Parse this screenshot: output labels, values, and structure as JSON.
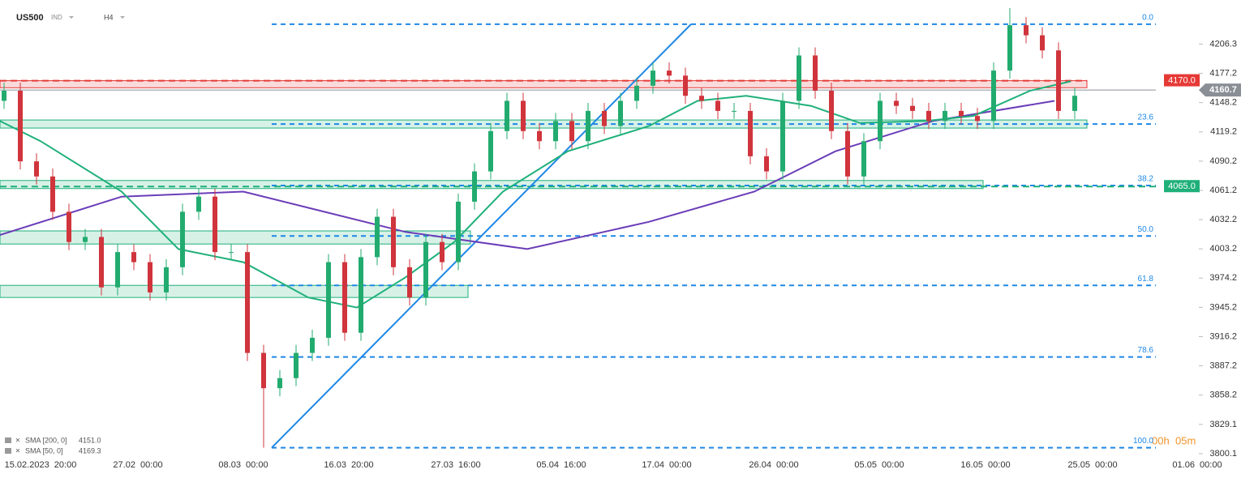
{
  "header": {
    "symbol": "US500",
    "market": "IND",
    "interval": "H4",
    "countdown_hours": "00h",
    "countdown_minutes": "05m"
  },
  "chart_data": {
    "type": "candlestick",
    "x": [
      0,
      1,
      2,
      3,
      4,
      5,
      6,
      7,
      8,
      9,
      10,
      11,
      12,
      13,
      14,
      15,
      16,
      17,
      18,
      19,
      20,
      21,
      22,
      23,
      24,
      25,
      26,
      27,
      28,
      29,
      30,
      31,
      32,
      33,
      34,
      35,
      36,
      37,
      38,
      39,
      40,
      41,
      42,
      43,
      44,
      45,
      46,
      47,
      48,
      49,
      50,
      51,
      52,
      53,
      54,
      55,
      56,
      57,
      58,
      59,
      60,
      61,
      62,
      63,
      64,
      65,
      66
    ],
    "open": [
      4150,
      4160,
      4090,
      4075,
      4040,
      4010,
      4015,
      3965,
      4000,
      3990,
      3960,
      3985,
      4040,
      4055,
      4000,
      4000,
      3900,
      3865,
      3875,
      3900,
      3915,
      3990,
      3920,
      3995,
      4035,
      3985,
      3955,
      4010,
      3990,
      4050,
      4080,
      4120,
      4150,
      4120,
      4110,
      4130,
      4110,
      4140,
      4125,
      4150,
      4165,
      4180,
      4175,
      4155,
      4150,
      4140,
      4140,
      4095,
      4080,
      4150,
      4195,
      4160,
      4120,
      4075,
      4110,
      4150,
      4145,
      4140,
      4130,
      4140,
      4135,
      4130,
      4180,
      4225,
      4215,
      4200,
      4140
    ],
    "high": [
      4168,
      4168,
      4098,
      4083,
      4048,
      4023,
      4023,
      4008,
      4008,
      3998,
      3993,
      4048,
      4063,
      4063,
      4008,
      4008,
      3908,
      3883,
      3908,
      3923,
      3998,
      3998,
      4003,
      4043,
      4043,
      3993,
      4018,
      4018,
      4058,
      4088,
      4128,
      4158,
      4158,
      4128,
      4138,
      4138,
      4148,
      4148,
      4158,
      4173,
      4188,
      4188,
      4183,
      4163,
      4158,
      4148,
      4148,
      4103,
      4158,
      4203,
      4203,
      4168,
      4128,
      4118,
      4158,
      4158,
      4153,
      4148,
      4148,
      4148,
      4143,
      4188,
      4242,
      4233,
      4223,
      4208,
      4163
    ],
    "low": [
      4142,
      4082,
      4067,
      4032,
      4002,
      4002,
      3957,
      3957,
      3982,
      3952,
      3952,
      3977,
      4032,
      3992,
      3992,
      3892,
      3806,
      3857,
      3867,
      3892,
      3907,
      3912,
      3912,
      3987,
      3977,
      3947,
      3947,
      3982,
      3982,
      4042,
      4072,
      4112,
      4112,
      4102,
      4102,
      4102,
      4102,
      4117,
      4117,
      4142,
      4157,
      4167,
      4147,
      4142,
      4132,
      4132,
      4087,
      4072,
      4072,
      4142,
      4152,
      4112,
      4067,
      4067,
      4102,
      4137,
      4132,
      4122,
      4122,
      4127,
      4122,
      4122,
      4172,
      4207,
      4192,
      4132,
      4132
    ],
    "close": [
      4160,
      4090,
      4075,
      4040,
      4010,
      4015,
      3965,
      4000,
      3990,
      3960,
      3985,
      4040,
      4055,
      4000,
      4000,
      3900,
      3865,
      3875,
      3900,
      3915,
      3990,
      3920,
      3995,
      4035,
      3985,
      3955,
      4010,
      3990,
      4050,
      4080,
      4120,
      4150,
      4120,
      4110,
      4130,
      4110,
      4140,
      4125,
      4150,
      4165,
      4180,
      4175,
      4155,
      4150,
      4140,
      4140,
      4095,
      4080,
      4150,
      4195,
      4160,
      4120,
      4075,
      4110,
      4150,
      4145,
      4140,
      4130,
      4140,
      4135,
      4130,
      4180,
      4225,
      4215,
      4200,
      4140,
      4155
    ],
    "up_color": "#22ab6f",
    "down_color": "#d0343c",
    "indicators": [
      {
        "name": "SMA [200, 0]",
        "value_label": "4151.0",
        "color": "#6a3db8",
        "x": [
          -0.25,
          7.25,
          14.75,
          24.75,
          32.25,
          39.75,
          46.25,
          51.25,
          57.25,
          64.75
        ],
        "values": [
          4017,
          4055,
          4060,
          4020,
          4003,
          4030,
          4060,
          4100,
          4130,
          4150
        ]
      },
      {
        "name": "SMA [50, 0]",
        "value_label": "4169.3",
        "color": "#1fb07a",
        "x": [
          -0.25,
          2.25,
          7.25,
          10.75,
          14.75,
          18.75,
          21.75,
          24.75,
          27.75,
          30.75,
          34.75,
          39.75,
          42.75,
          45.75,
          49.75,
          52.75,
          56.75,
          59.75,
          63.25,
          65.75
        ],
        "values": [
          4130,
          4110,
          4060,
          4003,
          3990,
          3955,
          3945,
          3975,
          4010,
          4060,
          4100,
          4125,
          4150,
          4155,
          4145,
          4128,
          4130,
          4135,
          4160,
          4169.3
        ]
      }
    ],
    "zones": [
      {
        "x": [
          -0.25,
          66.75
        ],
        "y": [
          4163,
          4170
        ],
        "color": "#e53935"
      },
      {
        "x": [
          -0.25,
          66.75
        ],
        "y": [
          4123,
          4131
        ],
        "color": "#1fb07a"
      },
      {
        "x": [
          -0.25,
          60.35
        ],
        "y": [
          4063,
          4071
        ],
        "color": "#1fb07a"
      },
      {
        "x": [
          -0.25,
          28.75
        ],
        "y": [
          4008,
          4021
        ],
        "color": "#1fb07a"
      },
      {
        "x": [
          -0.25,
          28.6
        ],
        "y": [
          3955,
          3967
        ],
        "color": "#1fb07a"
      }
    ],
    "trendline": {
      "x": [
        16.5,
        42.35
      ],
      "values": [
        3806,
        4226
      ],
      "color": "#1e88e5"
    },
    "fib_levels": {
      "x": [
        16.5,
        71
      ],
      "color": "#1e88e5",
      "levels": [
        {
          "label": "0.0",
          "value": 4226
        },
        {
          "label": "23.6",
          "value": 4127
        },
        {
          "label": "38.2",
          "value": 4066
        },
        {
          "label": "50.0",
          "value": 4016
        },
        {
          "label": "61.8",
          "value": 3967
        },
        {
          "label": "78.6",
          "value": 3896
        },
        {
          "label": "100.0",
          "value": 3806
        }
      ]
    },
    "price_lines": [
      {
        "value": 4170,
        "label": "4170.0",
        "color": "#e53935",
        "x": [
          -0.25,
          66.75
        ]
      },
      {
        "value": 4065,
        "label": "4065.0",
        "color": "#1fb07a",
        "x": [
          -0.25,
          71
        ]
      },
      {
        "value": 4160.7,
        "label": "4160.7",
        "color": "#8a8f96",
        "x": [
          -0.25,
          71
        ]
      }
    ],
    "xlim": [
      -0.25,
      77.0
    ],
    "xticks": [
      {
        "value": 2.25,
        "label": "15.02.2023  20:00"
      },
      {
        "value": 8.25,
        "label": "27.02  00:00"
      },
      {
        "value": 14.75,
        "label": "08.03  00:00"
      },
      {
        "value": 21.25,
        "label": "16.03  20:00"
      },
      {
        "value": 27.85,
        "label": "27.03  16:00"
      },
      {
        "value": 34.35,
        "label": "05.04  16:00"
      },
      {
        "value": 40.85,
        "label": "17.04  00:00"
      },
      {
        "value": 47.45,
        "label": "26.04  00:00"
      },
      {
        "value": 53.95,
        "label": "05.05  00:00"
      },
      {
        "value": 60.5,
        "label": "16.05  00:00"
      },
      {
        "value": 67.1,
        "label": "25.05  00:00"
      },
      {
        "value": 73.55,
        "label": "01.06  00:00"
      }
    ],
    "ylim": [
      3788,
      4250
    ],
    "yticks": [
      3800.1,
      3829.1,
      3858.2,
      3887.2,
      3916.2,
      3945.2,
      3974.2,
      4003.2,
      4032.2,
      4061.2,
      4090.2,
      4119.2,
      4148.2,
      4177.2,
      4206.3
    ]
  }
}
